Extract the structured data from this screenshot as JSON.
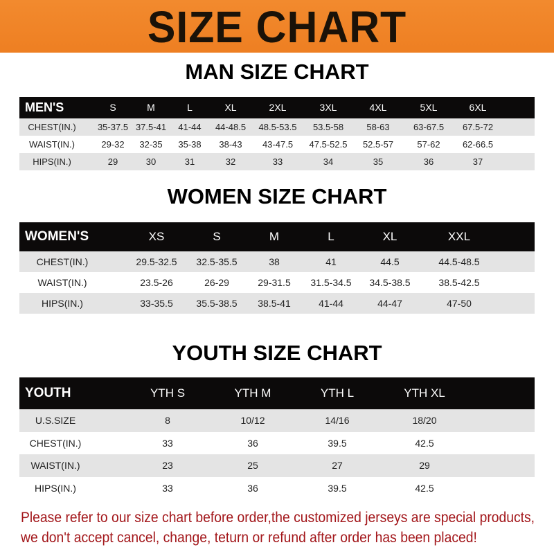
{
  "banner": {
    "title": "SIZE CHART",
    "color": "#f0852a"
  },
  "men": {
    "title": "MAN SIZE CHART",
    "header": [
      "MEN'S",
      "S",
      "M",
      "L",
      "XL",
      "2XL",
      "3XL",
      "4XL",
      "5XL",
      "6XL"
    ],
    "rows": [
      [
        "CHEST(IN.)",
        "35-37.5",
        "37.5-41",
        "41-44",
        "44-48.5",
        "48.5-53.5",
        "53.5-58",
        "58-63",
        "63-67.5",
        "67.5-72"
      ],
      [
        "WAIST(IN.)",
        "29-32",
        "32-35",
        "35-38",
        "38-43",
        "43-47.5",
        "47.5-52.5",
        "52.5-57",
        "57-62",
        "62-66.5"
      ],
      [
        "HIPS(IN.)",
        "29",
        "30",
        "31",
        "32",
        "33",
        "34",
        "35",
        "36",
        "37"
      ]
    ]
  },
  "women": {
    "title": "WOMEN SIZE CHART",
    "header": [
      "WOMEN'S",
      "XS",
      "S",
      "M",
      "L",
      "XL",
      "XXL"
    ],
    "rows": [
      [
        "CHEST(IN.)",
        "29.5-32.5",
        "32.5-35.5",
        "38",
        "41",
        "44.5",
        "44.5-48.5"
      ],
      [
        "WAIST(IN.)",
        "23.5-26",
        "26-29",
        "29-31.5",
        "31.5-34.5",
        "34.5-38.5",
        "38.5-42.5"
      ],
      [
        "HIPS(IN.)",
        "33-35.5",
        "35.5-38.5",
        "38.5-41",
        "41-44",
        "44-47",
        "47-50"
      ]
    ]
  },
  "youth": {
    "title": "YOUTH SIZE CHART",
    "header": [
      "YOUTH",
      "YTH S",
      "YTH M",
      "YTH L",
      "YTH XL"
    ],
    "rows": [
      [
        "U.S.SIZE",
        "8",
        "10/12",
        "14/16",
        "18/20"
      ],
      [
        "CHEST(IN.)",
        "33",
        "36",
        "39.5",
        "42.5"
      ],
      [
        "WAIST(IN.)",
        "23",
        "25",
        "27",
        "29"
      ],
      [
        "HIPS(IN.)",
        "33",
        "36",
        "39.5",
        "42.5"
      ]
    ]
  },
  "note": {
    "line1": "Please refer to our size chart before order,the customized jerseys are special products,",
    "line2": "we don't accept cancel, change, teturn or refund after order has been placed!",
    "color": "#a3171b"
  }
}
